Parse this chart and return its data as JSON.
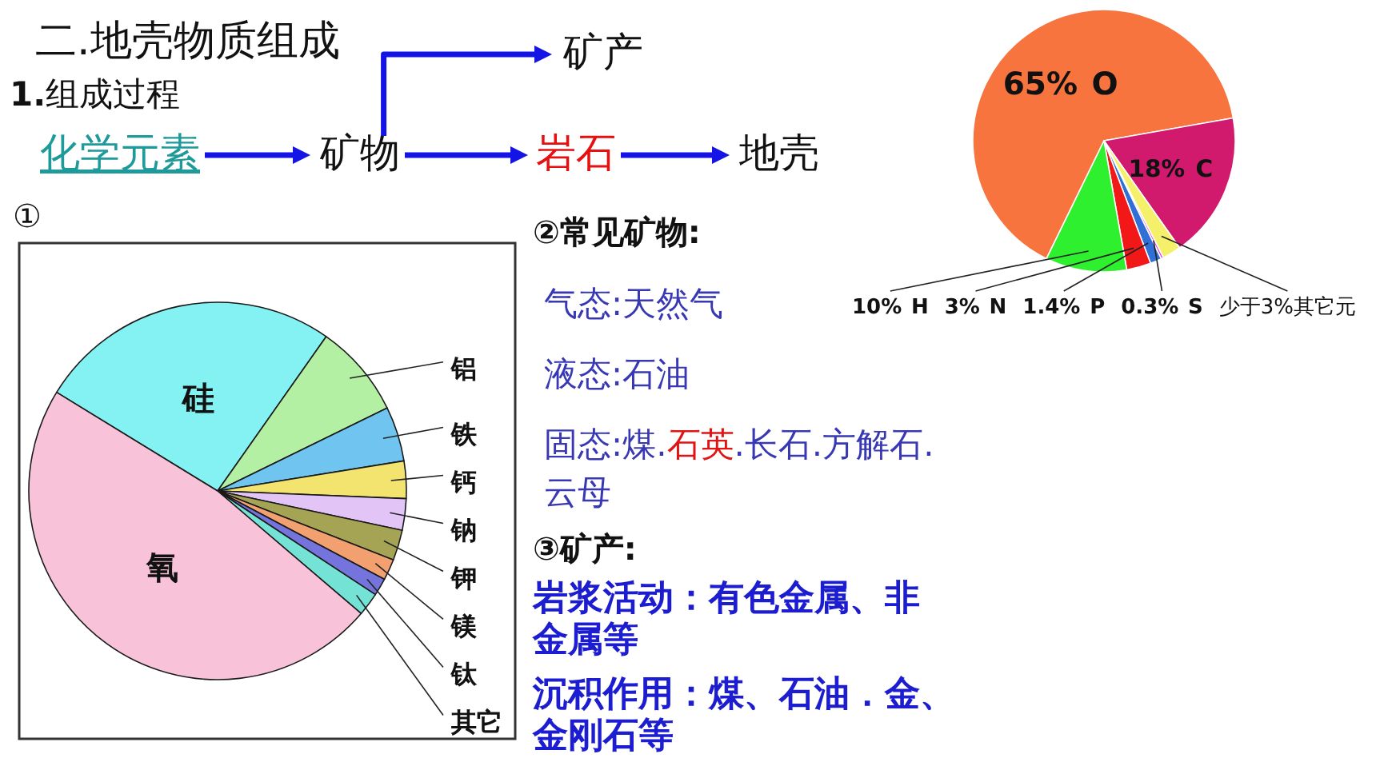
{
  "chart_data": [
    {
      "type": "other",
      "title": "二.地壳物质组成",
      "subtitle": "**1.**组成过程",
      "annotations": [
        "化学元素",
        "矿物",
        "岩石",
        "地壳",
        "矿产"
      ]
    },
    {
      "type": "pie",
      "categories": [
        "O",
        "C",
        "少于3%其它元",
        "S",
        "P",
        "N",
        "H"
      ],
      "values": [
        65,
        18,
        2.3,
        0.3,
        1.4,
        3,
        10
      ],
      "value_labels": [
        "65%",
        "18%",
        null,
        "0.3%",
        "1.4%",
        "3%",
        "10%"
      ],
      "colors": [
        "#f7743f",
        "#d11a6e",
        "#f5f06a",
        "#e23ee8",
        "#2f6fd6",
        "#f21818",
        "#2ef02e"
      ]
    },
    {
      "type": "pie",
      "title": "①",
      "categories": [
        "硅",
        "铝",
        "铁",
        "钙",
        "钠",
        "钾",
        "镁",
        "钛",
        "其它",
        "氧"
      ],
      "values": [
        26,
        8,
        4.7,
        3.2,
        2.7,
        2.6,
        1.8,
        1.5,
        2,
        47.5
      ],
      "colors": [
        "#84f2f2",
        "#b4f0a4",
        "#70c4f0",
        "#f2e46e",
        "#e2c4f6",
        "#a4a454",
        "#f2a070",
        "#7474dc",
        "#74e2d4",
        "#f8c2d8"
      ]
    },
    {
      "type": "other",
      "title": "②常见矿物:",
      "annotations": [
        "气态:天然气",
        "液态:石油",
        "固态:煤.",
        "石英",
        ".长石.方解石.云母"
      ]
    },
    {
      "type": "other",
      "title": "③矿产:",
      "annotations": [
        "岩浆活动：有色金属、非金属等",
        "沉积作用：煤、石油．金、金刚石等"
      ]
    }
  ]
}
